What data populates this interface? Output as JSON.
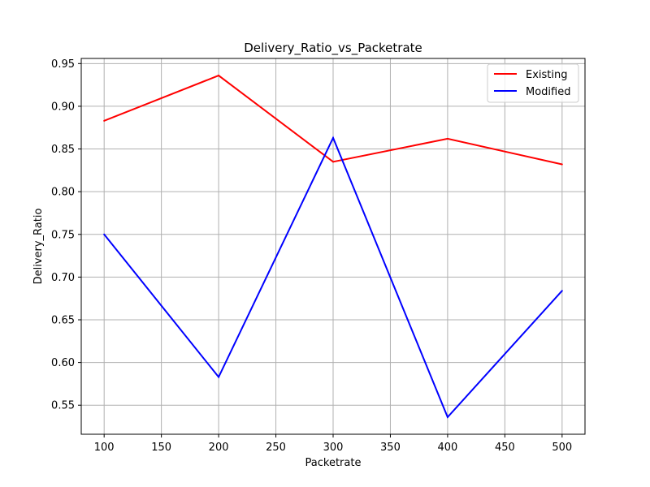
{
  "chart_data": {
    "type": "line",
    "title": "Delivery_Ratio_vs_Packetrate",
    "xlabel": "Packetrate",
    "ylabel": "Delivery_Ratio",
    "x": [
      100,
      200,
      300,
      400,
      500
    ],
    "xlim": [
      80,
      520
    ],
    "ylim": [
      0.516,
      0.956
    ],
    "xticks": [
      100,
      150,
      200,
      250,
      300,
      350,
      400,
      450,
      500
    ],
    "yticks": [
      0.55,
      0.6,
      0.65,
      0.7,
      0.75,
      0.8,
      0.85,
      0.9,
      0.95
    ],
    "xtick_labels": [
      "100",
      "150",
      "200",
      "250",
      "300",
      "350",
      "400",
      "450",
      "500"
    ],
    "ytick_labels": [
      "0.55",
      "0.60",
      "0.65",
      "0.70",
      "0.75",
      "0.80",
      "0.85",
      "0.90",
      "0.95"
    ],
    "grid": true,
    "legend_position": "top-right",
    "series": [
      {
        "name": "Existing",
        "color": "#ff0000",
        "values": [
          0.883,
          0.936,
          0.835,
          0.862,
          0.832
        ]
      },
      {
        "name": "Modified",
        "color": "#0000ff",
        "values": [
          0.75,
          0.583,
          0.863,
          0.536,
          0.684
        ]
      }
    ]
  }
}
